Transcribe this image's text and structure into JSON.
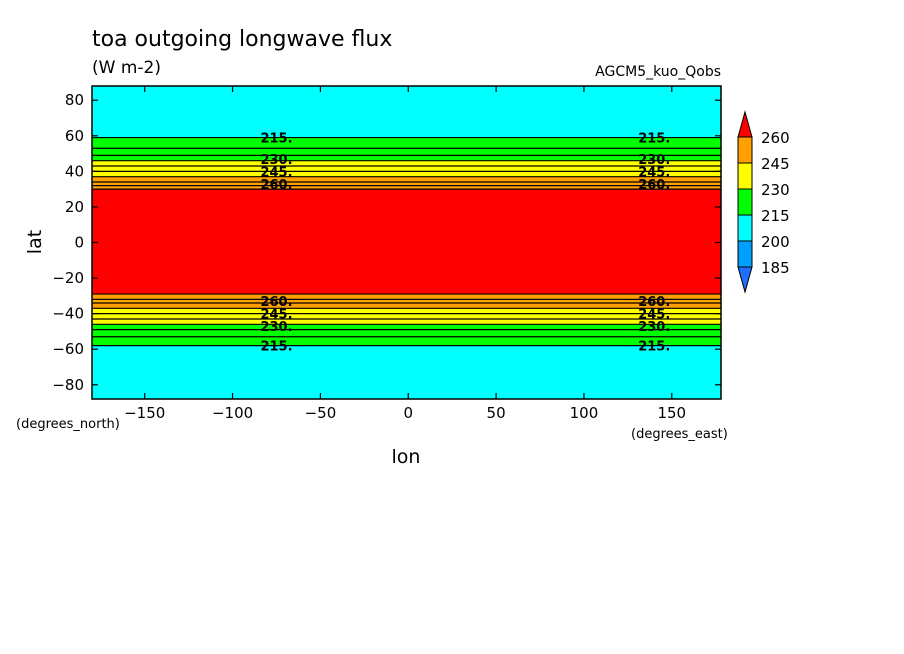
{
  "chart_data": {
    "type": "heatmap",
    "title": "toa outgoing longwave flux",
    "subtitle": "(W m-2)",
    "dataset": "AGCM5_kuo_Qobs",
    "xlabel": "lon",
    "ylabel": "lat",
    "x_units": "(degrees_east)",
    "y_units": "(degrees_north)",
    "xlim": [
      -180,
      178
    ],
    "ylim": [
      -88,
      88
    ],
    "x_ticks": [
      -150,
      -100,
      -50,
      0,
      50,
      100,
      150
    ],
    "y_ticks": [
      -80,
      -60,
      -40,
      -20,
      0,
      20,
      40,
      60,
      80
    ],
    "levels": [
      185,
      200,
      215,
      230,
      245,
      260
    ],
    "level_colors": [
      "#1e6eff",
      "#00a0ff",
      "#00ffff",
      "#00ff00",
      "#ffff00",
      "#ffa000",
      "#ff0000"
    ],
    "bands": [
      {
        "lat_min": 59,
        "lat_max": 88,
        "range": "200-215",
        "color": "#00ffff"
      },
      {
        "lat_min": 46,
        "lat_max": 59,
        "range": "215-230",
        "color": "#00ff00"
      },
      {
        "lat_min": 37,
        "lat_max": 46,
        "range": "230-245",
        "color": "#ffff00"
      },
      {
        "lat_min": 30,
        "lat_max": 37,
        "range": "245-260",
        "color": "#ffa000"
      },
      {
        "lat_min": -29,
        "lat_max": 30,
        "range": ">260",
        "color": "#ff0000"
      },
      {
        "lat_min": -37,
        "lat_max": -29,
        "range": "245-260",
        "color": "#ffa000"
      },
      {
        "lat_min": -46,
        "lat_max": -37,
        "range": "230-245",
        "color": "#ffff00"
      },
      {
        "lat_min": -58,
        "lat_max": -46,
        "range": "215-230",
        "color": "#00ff00"
      },
      {
        "lat_min": -88,
        "lat_max": -58,
        "range": "200-215",
        "color": "#00ffff"
      }
    ],
    "contour_lines_lat": [
      59,
      53,
      49,
      46,
      43,
      40,
      37,
      34,
      32,
      30,
      -29,
      -32,
      -34,
      -37,
      -40,
      -43,
      -46,
      -49,
      -53,
      -58
    ],
    "contour_labels": [
      {
        "text": "215.",
        "lat": 59,
        "lon": [
          -75,
          140
        ]
      },
      {
        "text": "230.",
        "lat": 47,
        "lon": [
          -75,
          140
        ]
      },
      {
        "text": "245.",
        "lat": 40,
        "lon": [
          -75,
          140
        ]
      },
      {
        "text": "260.",
        "lat": 33,
        "lon": [
          -75,
          140
        ]
      },
      {
        "text": "260.",
        "lat": -33,
        "lon": [
          -75,
          140
        ]
      },
      {
        "text": "245.",
        "lat": -40,
        "lon": [
          -75,
          140
        ]
      },
      {
        "text": "230.",
        "lat": -47,
        "lon": [
          -75,
          140
        ]
      },
      {
        "text": "215.",
        "lat": -58,
        "lon": [
          -75,
          140
        ]
      }
    ],
    "colorbar_labels": [
      "260",
      "245",
      "230",
      "215",
      "200",
      "185"
    ]
  }
}
